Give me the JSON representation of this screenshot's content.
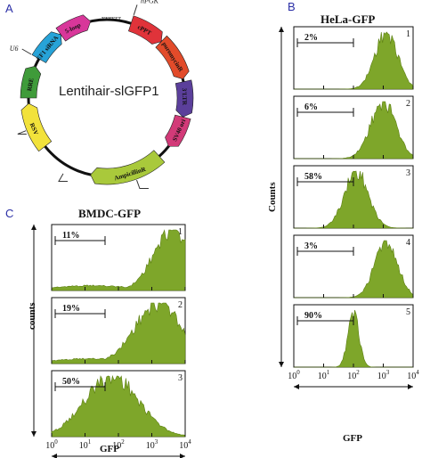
{
  "panels": {
    "a": {
      "letter": "A",
      "plasmid": {
        "name": "Lentihair-slGFP1",
        "segments": [
          {
            "label": "cPPT",
            "color": "#e0333a"
          },
          {
            "label": "puromycinR",
            "color": "#e24b2a"
          },
          {
            "label": "3'LTR",
            "color": "#5b3f9b"
          },
          {
            "label": "SV40 ori",
            "color": "#d23a78"
          },
          {
            "label": "AmpicillinR",
            "color": "#a9c93b"
          },
          {
            "label": "RSV",
            "color": "#f2e23b"
          },
          {
            "label": "RRE",
            "color": "#3f9b3a"
          },
          {
            "label": "EF1 siRNA",
            "color": "#27a3d8"
          },
          {
            "label": "5-loop",
            "color": "#d8379a"
          },
          {
            "label": "U6",
            "color": "#555555"
          },
          {
            "label": "hPGK",
            "color": "#555555"
          },
          {
            "label": "TTTTTT",
            "color": "#333333"
          }
        ],
        "promoter_labels": [
          "U6",
          "hPGK"
        ]
      }
    },
    "b": {
      "letter": "B",
      "title": "HeLa-GFP",
      "ylabel": "Counts",
      "xlabel": "GFP"
    },
    "c": {
      "letter": "C",
      "title": "BMDC-GFP",
      "ylabel": "counts",
      "xlabel": "GFP"
    }
  },
  "chart_data": [
    {
      "type": "area",
      "title": "HeLa-GFP",
      "xlabel": "GFP",
      "ylabel": "Counts",
      "x_scale": "log",
      "xlim": [
        1,
        10000
      ],
      "x_ticks": [
        "10^0",
        "10^1",
        "10^2",
        "10^3",
        "10^4"
      ],
      "subplots": [
        {
          "index": "1",
          "gate_pct": "2%",
          "peak_log": 3.1,
          "width": 0.38
        },
        {
          "index": "2",
          "gate_pct": "6%",
          "peak_log": 3.0,
          "width": 0.42
        },
        {
          "index": "3",
          "gate_pct": "58%",
          "peak_log": 2.1,
          "width": 0.4
        },
        {
          "index": "4",
          "gate_pct": "3%",
          "peak_log": 3.1,
          "width": 0.38
        },
        {
          "index": "5",
          "gate_pct": "90%",
          "peak_log": 2.0,
          "width": 0.18
        }
      ]
    },
    {
      "type": "area",
      "title": "BMDC-GFP",
      "xlabel": "GFP",
      "ylabel": "counts",
      "x_scale": "log",
      "xlim": [
        1,
        10000
      ],
      "x_ticks": [
        "10^0",
        "10^1",
        "10^2",
        "10^3",
        "10^4"
      ],
      "subplots": [
        {
          "index": "1",
          "gate_pct": "11%",
          "peak_log": 3.6,
          "width": 0.55
        },
        {
          "index": "2",
          "gate_pct": "19%",
          "peak_log": 3.2,
          "width": 0.7
        },
        {
          "index": "3",
          "gate_pct": "50%",
          "peak_log": 1.8,
          "width": 0.8
        }
      ]
    }
  ]
}
